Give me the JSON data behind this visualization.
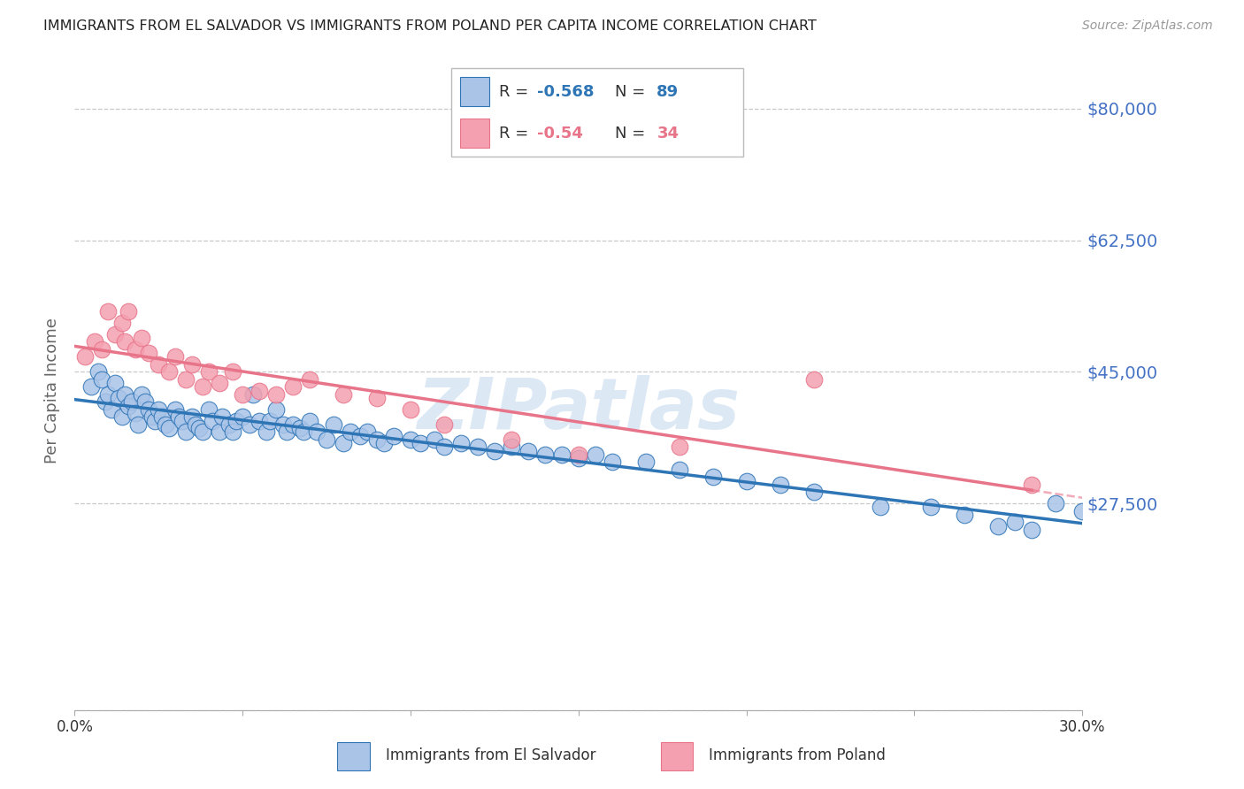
{
  "title": "IMMIGRANTS FROM EL SALVADOR VS IMMIGRANTS FROM POLAND PER CAPITA INCOME CORRELATION CHART",
  "source": "Source: ZipAtlas.com",
  "ylabel_label": "Per Capita Income",
  "ylabel_ticks": [
    0,
    27500,
    45000,
    62500,
    80000
  ],
  "ylabel_tick_labels": [
    "",
    "$27,500",
    "$45,000",
    "$62,500",
    "$80,000"
  ],
  "xmin": 0.0,
  "xmax": 0.3,
  "ymin": 5000,
  "ymax": 85000,
  "el_salvador_R": -0.568,
  "el_salvador_N": 89,
  "poland_R": -0.54,
  "poland_N": 34,
  "legend_entries": [
    {
      "label": "Immigrants from El Salvador",
      "color": "#aac4e8"
    },
    {
      "label": "Immigrants from Poland",
      "color": "#f4a0b0"
    }
  ],
  "color_el_salvador": "#aac4e8",
  "color_poland": "#f4a0b0",
  "line_color_el_salvador": "#2e75b6",
  "line_color_poland": "#e8748a",
  "watermark": "ZIPatlas",
  "watermark_color": "#dce9f5",
  "title_color": "#222222",
  "axis_label_color": "#666666",
  "ytick_color": "#4472c4",
  "grid_color": "#c8c8c8",
  "el_salvador_x": [
    0.005,
    0.007,
    0.008,
    0.009,
    0.01,
    0.011,
    0.012,
    0.013,
    0.014,
    0.015,
    0.016,
    0.017,
    0.018,
    0.019,
    0.02,
    0.021,
    0.022,
    0.023,
    0.024,
    0.025,
    0.026,
    0.027,
    0.028,
    0.03,
    0.031,
    0.032,
    0.033,
    0.035,
    0.036,
    0.037,
    0.038,
    0.04,
    0.041,
    0.043,
    0.044,
    0.046,
    0.047,
    0.048,
    0.05,
    0.052,
    0.053,
    0.055,
    0.057,
    0.058,
    0.06,
    0.062,
    0.063,
    0.065,
    0.067,
    0.068,
    0.07,
    0.072,
    0.075,
    0.077,
    0.08,
    0.082,
    0.085,
    0.087,
    0.09,
    0.092,
    0.095,
    0.1,
    0.103,
    0.107,
    0.11,
    0.115,
    0.12,
    0.125,
    0.13,
    0.135,
    0.14,
    0.145,
    0.15,
    0.155,
    0.16,
    0.17,
    0.18,
    0.19,
    0.2,
    0.21,
    0.22,
    0.24,
    0.255,
    0.265,
    0.275,
    0.28,
    0.285,
    0.292,
    0.3
  ],
  "el_salvador_y": [
    43000,
    45000,
    44000,
    41000,
    42000,
    40000,
    43500,
    41500,
    39000,
    42000,
    40500,
    41000,
    39500,
    38000,
    42000,
    41000,
    40000,
    39000,
    38500,
    40000,
    39000,
    38000,
    37500,
    40000,
    39000,
    38500,
    37000,
    39000,
    38000,
    37500,
    37000,
    40000,
    38500,
    37000,
    39000,
    38000,
    37000,
    38500,
    39000,
    38000,
    42000,
    38500,
    37000,
    38500,
    40000,
    38000,
    37000,
    38000,
    37500,
    37000,
    38500,
    37000,
    36000,
    38000,
    35500,
    37000,
    36500,
    37000,
    36000,
    35500,
    36500,
    36000,
    35500,
    36000,
    35000,
    35500,
    35000,
    34500,
    35000,
    34500,
    34000,
    34000,
    33500,
    34000,
    33000,
    33000,
    32000,
    31000,
    30500,
    30000,
    29000,
    27000,
    27000,
    26000,
    24500,
    25000,
    24000,
    27500,
    26500
  ],
  "poland_x": [
    0.003,
    0.006,
    0.008,
    0.01,
    0.012,
    0.014,
    0.015,
    0.016,
    0.018,
    0.02,
    0.022,
    0.025,
    0.028,
    0.03,
    0.033,
    0.035,
    0.038,
    0.04,
    0.043,
    0.047,
    0.05,
    0.055,
    0.06,
    0.065,
    0.07,
    0.08,
    0.09,
    0.1,
    0.11,
    0.13,
    0.15,
    0.18,
    0.22,
    0.285
  ],
  "poland_y": [
    47000,
    49000,
    48000,
    53000,
    50000,
    51500,
    49000,
    53000,
    48000,
    49500,
    47500,
    46000,
    45000,
    47000,
    44000,
    46000,
    43000,
    45000,
    43500,
    45000,
    42000,
    42500,
    42000,
    43000,
    44000,
    42000,
    41500,
    40000,
    38000,
    36000,
    34000,
    35000,
    44000,
    30000
  ]
}
